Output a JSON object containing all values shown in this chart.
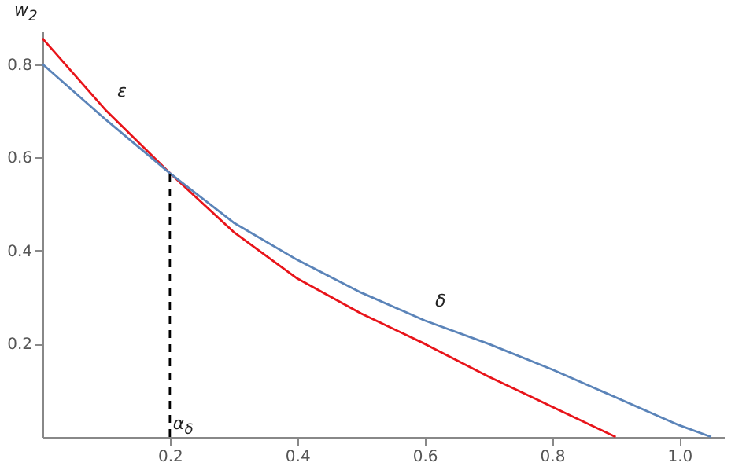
{
  "chart_data": {
    "type": "line",
    "xlabel": "α$_{δ}$",
    "ylabel": "w$_{2}$",
    "xlim": [
      0,
      1.07
    ],
    "ylim": [
      0,
      0.87
    ],
    "xticks": [
      0.2,
      0.4,
      0.6,
      0.8,
      {
        "value": 1,
        "label": "1.0"
      }
    ],
    "yticks": [
      0.2,
      0.4,
      0.6,
      0.8
    ],
    "grid": false,
    "marker": "none",
    "line_style": "solid",
    "series": [
      {
        "name": "ε",
        "color": "#e8141a",
        "x": [
          0,
          0.1,
          0.2,
          0.3,
          0.4,
          0.5,
          0.6,
          0.7,
          0.8,
          0.9
        ],
        "values": [
          0.855,
          0.7,
          0.566,
          0.44,
          0.34,
          0.265,
          0.2,
          0.13,
          0.065,
          0
        ]
      },
      {
        "name": "δ",
        "color": "#5b84b9",
        "x": [
          0,
          0.1,
          0.2,
          0.3,
          0.4,
          0.5,
          0.6,
          0.7,
          0.8,
          0.9,
          1.0,
          1.05
        ],
        "values": [
          0.8,
          0.68,
          0.566,
          0.46,
          0.38,
          0.31,
          0.25,
          0.2,
          0.145,
          0.085,
          0.025,
          0
        ]
      },
      {
        "color": "#000000",
        "line_style": "dashed",
        "x": [
          0.2,
          0.2
        ],
        "values": [
          0,
          0.566
        ]
      }
    ]
  }
}
